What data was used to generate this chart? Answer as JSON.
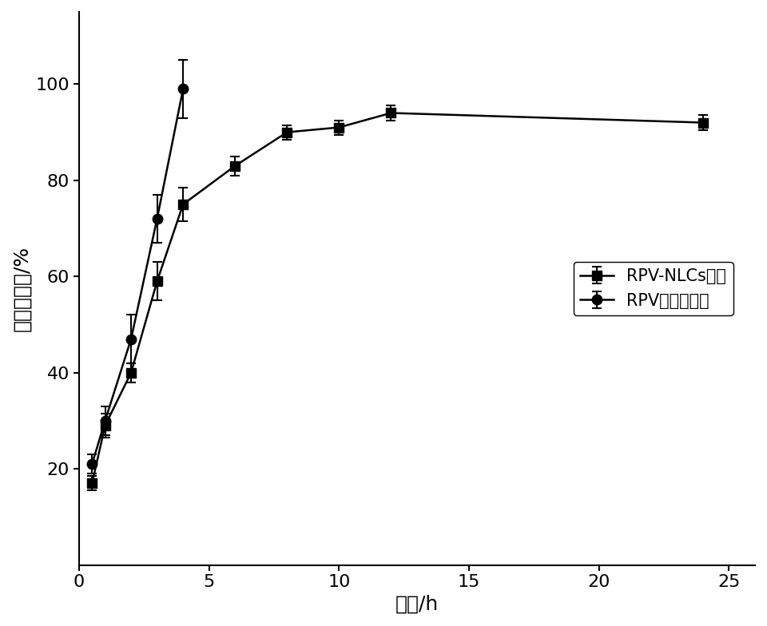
{
  "nlcs_x": [
    0.5,
    1,
    2,
    3,
    4,
    6,
    8,
    10,
    12,
    24
  ],
  "nlcs_y": [
    17,
    29,
    40,
    59,
    75,
    83,
    90,
    91,
    94,
    92
  ],
  "nlcs_yerr": [
    1.5,
    2.5,
    2.0,
    4.0,
    3.5,
    2.0,
    1.5,
    1.5,
    1.5,
    1.5
  ],
  "sol_x": [
    0.5,
    1,
    2,
    3,
    4
  ],
  "sol_y": [
    21,
    30,
    47,
    72,
    99
  ],
  "sol_yerr": [
    2.0,
    3.0,
    5.0,
    5.0,
    6.0
  ],
  "xlabel": "时间/h",
  "ylabel": "累积解放率/%",
  "xlim": [
    0,
    26
  ],
  "ylim": [
    0,
    115
  ],
  "xticks": [
    0,
    5,
    10,
    15,
    20,
    25
  ],
  "yticks": [
    20,
    40,
    60,
    80,
    100
  ],
  "legend_nlcs": "RPV-NLCs制剂",
  "legend_sol": "RPV丙二醇溶液",
  "line_color": "#000000",
  "bg_color": "#ffffff"
}
